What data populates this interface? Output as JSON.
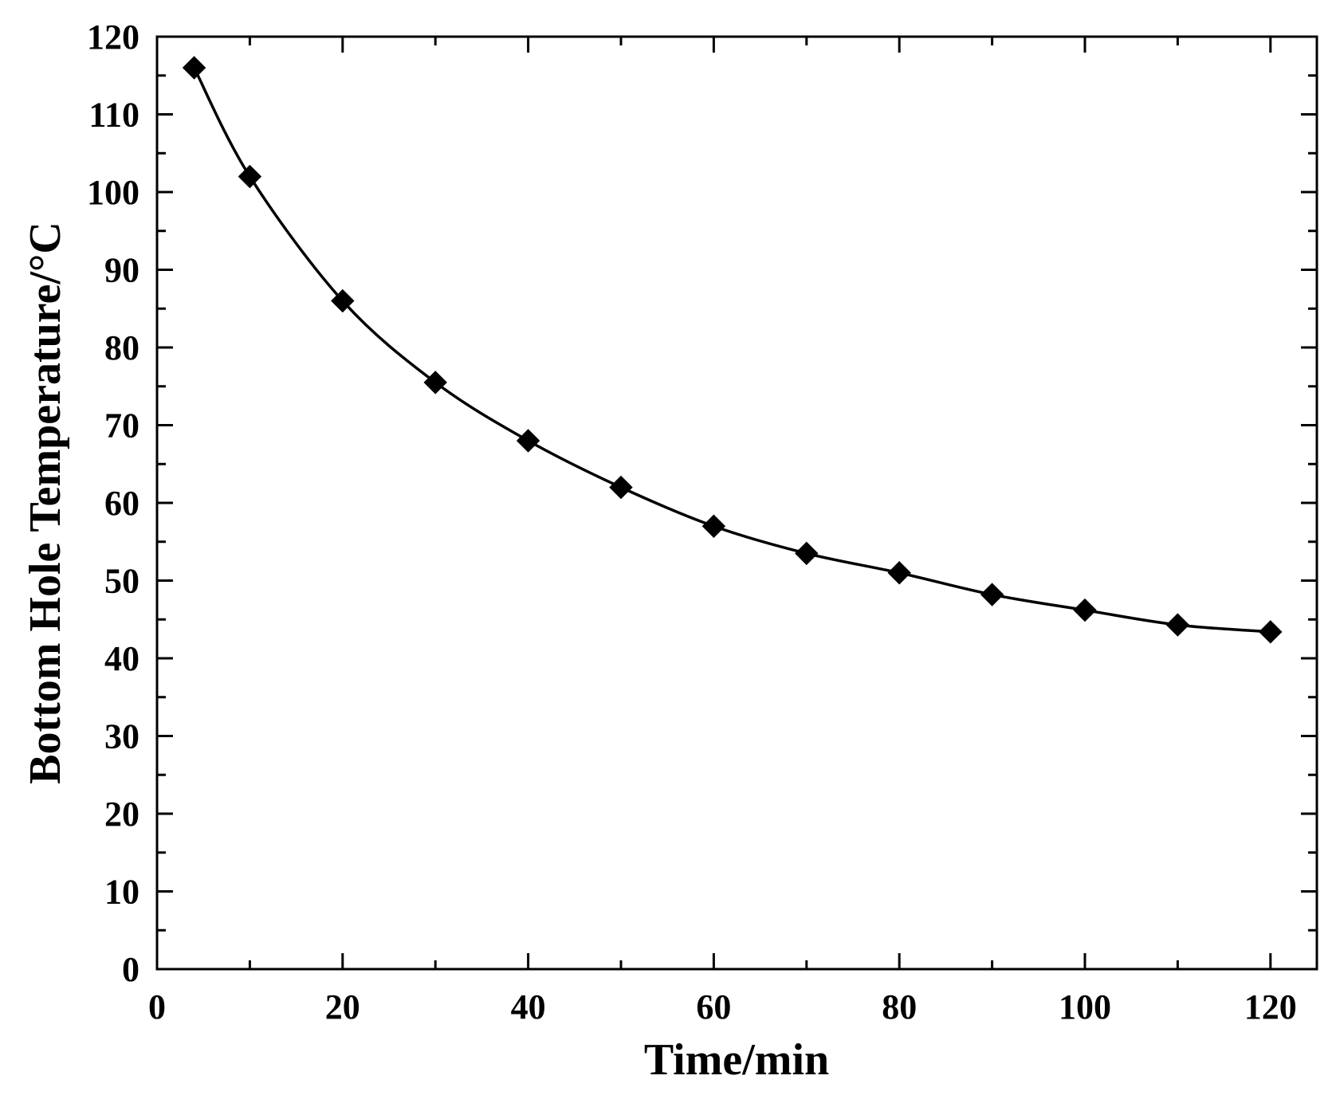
{
  "chart_data": {
    "type": "line",
    "title": "",
    "xlabel": "Time/min",
    "ylabel": "Bottom Hole Temperature/°C",
    "xlim": [
      0,
      125
    ],
    "ylim": [
      0,
      120
    ],
    "x_ticks": [
      0,
      20,
      40,
      60,
      80,
      100,
      120
    ],
    "y_ticks": [
      0,
      10,
      20,
      30,
      40,
      50,
      60,
      70,
      80,
      90,
      100,
      110,
      120
    ],
    "grid": false,
    "legend": "none",
    "marker": "diamond",
    "color": "#000000",
    "series": [
      {
        "x": [
          4,
          10,
          20,
          30,
          40,
          50,
          60,
          70,
          80,
          90,
          100,
          110,
          120
        ],
        "y": [
          116,
          102,
          86,
          75.5,
          68,
          62,
          57,
          53.5,
          51,
          48.2,
          46.2,
          44.3,
          43.4
        ]
      }
    ]
  }
}
